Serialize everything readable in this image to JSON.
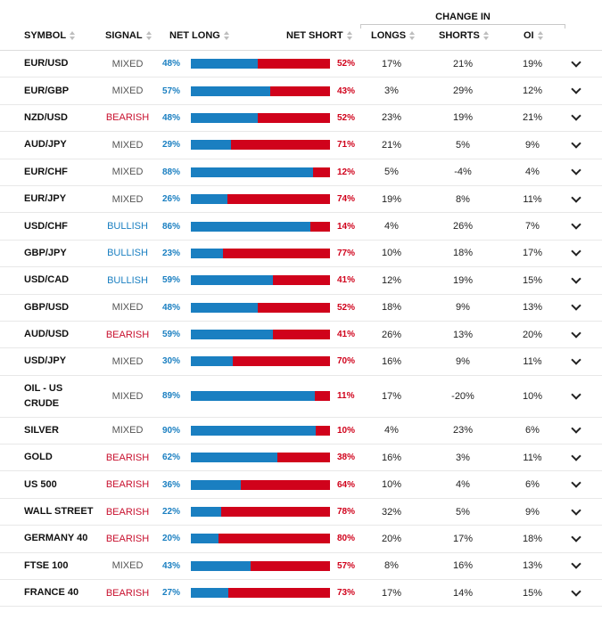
{
  "header": {
    "change_in": "CHANGE IN",
    "symbol": "SYMBOL",
    "signal": "SIGNAL",
    "net_long": "NET LONG",
    "net_short": "NET SHORT",
    "longs": "LONGS",
    "shorts": "SHORTS",
    "oi": "OI"
  },
  "colors": {
    "long": "#1a7fc1",
    "short": "#d0021b",
    "bearish": "#c8102e",
    "bullish": "#1a7fc1",
    "mixed": "#555555"
  },
  "rows": [
    {
      "symbol": "EUR/USD",
      "signal": "MIXED",
      "net_long": "48%",
      "net_short": "52%",
      "long_frac": 48,
      "longs": "17%",
      "shorts": "21%",
      "oi": "19%"
    },
    {
      "symbol": "EUR/GBP",
      "signal": "MIXED",
      "net_long": "57%",
      "net_short": "43%",
      "long_frac": 57,
      "longs": "3%",
      "shorts": "29%",
      "oi": "12%"
    },
    {
      "symbol": "NZD/USD",
      "signal": "BEARISH",
      "net_long": "48%",
      "net_short": "52%",
      "long_frac": 48,
      "longs": "23%",
      "shorts": "19%",
      "oi": "21%"
    },
    {
      "symbol": "AUD/JPY",
      "signal": "MIXED",
      "net_long": "29%",
      "net_short": "71%",
      "long_frac": 29,
      "longs": "21%",
      "shorts": "5%",
      "oi": "9%"
    },
    {
      "symbol": "EUR/CHF",
      "signal": "MIXED",
      "net_long": "88%",
      "net_short": "12%",
      "long_frac": 88,
      "longs": "5%",
      "shorts": "-4%",
      "oi": "4%"
    },
    {
      "symbol": "EUR/JPY",
      "signal": "MIXED",
      "net_long": "26%",
      "net_short": "74%",
      "long_frac": 26,
      "longs": "19%",
      "shorts": "8%",
      "oi": "11%"
    },
    {
      "symbol": "USD/CHF",
      "signal": "BULLISH",
      "net_long": "86%",
      "net_short": "14%",
      "long_frac": 86,
      "longs": "4%",
      "shorts": "26%",
      "oi": "7%"
    },
    {
      "symbol": "GBP/JPY",
      "signal": "BULLISH",
      "net_long": "23%",
      "net_short": "77%",
      "long_frac": 23,
      "longs": "10%",
      "shorts": "18%",
      "oi": "17%"
    },
    {
      "symbol": "USD/CAD",
      "signal": "BULLISH",
      "net_long": "59%",
      "net_short": "41%",
      "long_frac": 59,
      "longs": "12%",
      "shorts": "19%",
      "oi": "15%"
    },
    {
      "symbol": "GBP/USD",
      "signal": "MIXED",
      "net_long": "48%",
      "net_short": "52%",
      "long_frac": 48,
      "longs": "18%",
      "shorts": "9%",
      "oi": "13%"
    },
    {
      "symbol": "AUD/USD",
      "signal": "BEARISH",
      "net_long": "59%",
      "net_short": "41%",
      "long_frac": 59,
      "longs": "26%",
      "shorts": "13%",
      "oi": "20%"
    },
    {
      "symbol": "USD/JPY",
      "signal": "MIXED",
      "net_long": "30%",
      "net_short": "70%",
      "long_frac": 30,
      "longs": "16%",
      "shorts": "9%",
      "oi": "11%"
    },
    {
      "symbol": "OIL - US CRUDE",
      "signal": "MIXED",
      "net_long": "89%",
      "net_short": "11%",
      "long_frac": 89,
      "longs": "17%",
      "shorts": "-20%",
      "oi": "10%"
    },
    {
      "symbol": "SILVER",
      "signal": "MIXED",
      "net_long": "90%",
      "net_short": "10%",
      "long_frac": 90,
      "longs": "4%",
      "shorts": "23%",
      "oi": "6%"
    },
    {
      "symbol": "GOLD",
      "signal": "BEARISH",
      "net_long": "62%",
      "net_short": "38%",
      "long_frac": 62,
      "longs": "16%",
      "shorts": "3%",
      "oi": "11%"
    },
    {
      "symbol": "US 500",
      "signal": "BEARISH",
      "net_long": "36%",
      "net_short": "64%",
      "long_frac": 36,
      "longs": "10%",
      "shorts": "4%",
      "oi": "6%"
    },
    {
      "symbol": "WALL STREET",
      "signal": "BEARISH",
      "net_long": "22%",
      "net_short": "78%",
      "long_frac": 22,
      "longs": "32%",
      "shorts": "5%",
      "oi": "9%"
    },
    {
      "symbol": "GERMANY 40",
      "signal": "BEARISH",
      "net_long": "20%",
      "net_short": "80%",
      "long_frac": 20,
      "longs": "20%",
      "shorts": "17%",
      "oi": "18%"
    },
    {
      "symbol": "FTSE 100",
      "signal": "MIXED",
      "net_long": "43%",
      "net_short": "57%",
      "long_frac": 43,
      "longs": "8%",
      "shorts": "16%",
      "oi": "13%"
    },
    {
      "symbol": "FRANCE 40",
      "signal": "BEARISH",
      "net_long": "27%",
      "net_short": "73%",
      "long_frac": 27,
      "longs": "17%",
      "shorts": "14%",
      "oi": "15%"
    }
  ]
}
